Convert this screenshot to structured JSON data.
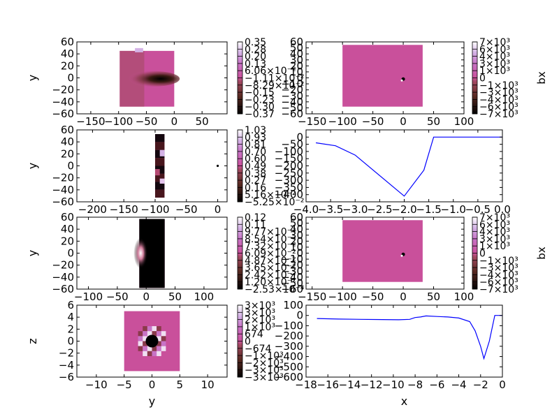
{
  "chart_data": [
    {
      "id": "p1",
      "type": "heatmap",
      "xlabel": "",
      "ylabel": "y",
      "xlim": [
        -175,
        95
      ],
      "ylim": [
        -60,
        60
      ],
      "xticks": [
        "−150",
        "−100",
        "−50",
        "0",
        "50"
      ],
      "xtick_values": [
        -150,
        -100,
        -50,
        0,
        50
      ],
      "yticks": [
        "−60",
        "−40",
        "−20",
        "0",
        "20",
        "40",
        "60"
      ],
      "ytick_values": [
        -60,
        -40,
        -20,
        0,
        20,
        40,
        60
      ],
      "data_extent": [
        -98,
        0,
        -48,
        45
      ],
      "colorbar": {
        "label": "",
        "ticks": [
          "0.35",
          "0.28",
          "0.20",
          "0.13",
          "6.06×10⁻²",
          "−1.11×10⁻²",
          "−8.29×10⁻²",
          "−0.15",
          "−0.23",
          "−0.30",
          "−0.37"
        ]
      }
    },
    {
      "id": "p2",
      "type": "heatmap",
      "xlabel": "",
      "ylabel": "",
      "xlim": [
        -160,
        100
      ],
      "ylim": [
        -60,
        60
      ],
      "xticks": [
        "−150",
        "−100",
        "−50",
        "0",
        "50",
        "100"
      ],
      "xtick_values": [
        -150,
        -100,
        -50,
        0,
        50,
        100
      ],
      "yticks": [
        "−60",
        "−50",
        "−40",
        "−30",
        "−20",
        "−10",
        "0",
        "10",
        "20",
        "30",
        "40",
        "50",
        "60"
      ],
      "ytick_values": [
        -60,
        -50,
        -40,
        -30,
        -20,
        -10,
        0,
        10,
        20,
        30,
        40,
        50,
        60
      ],
      "data_extent": [
        -100,
        32,
        -48,
        55
      ],
      "colorbar": {
        "label": "bx",
        "ticks": [
          "7×10³",
          "6×10³",
          "4×10³",
          "3×10³",
          "1×10³",
          "0",
          "−1×10³",
          "−3×10³",
          "−4×10³",
          "−6×10³",
          "−7×10³"
        ]
      }
    },
    {
      "id": "p3",
      "type": "heatmap",
      "xlabel": "",
      "ylabel": "y",
      "xlim": [
        -225,
        15
      ],
      "ylim": [
        -60,
        60
      ],
      "xticks": [
        "−200",
        "−150",
        "−100",
        "−50",
        "0"
      ],
      "xtick_values": [
        -200,
        -150,
        -100,
        -50,
        0
      ],
      "yticks": [
        "−60",
        "−40",
        "−20",
        "0",
        "20",
        "40",
        "60"
      ],
      "ytick_values": [
        -60,
        -40,
        -20,
        0,
        20,
        40,
        60
      ],
      "data_extent": [
        -100,
        -85,
        -53,
        53
      ],
      "colorbar": {
        "label": "",
        "ticks": [
          "1.03",
          "0.93",
          "0.81",
          "0.70",
          "0.60",
          "0.49",
          "0.38",
          "0.27",
          "0.16",
          "5.16×10⁻²",
          "−5.25×10⁻²"
        ]
      }
    },
    {
      "id": "p4",
      "type": "line",
      "xlabel": "",
      "ylabel": "",
      "xlim": [
        -4.0,
        0.0
      ],
      "ylim": [
        -450,
        50
      ],
      "xticks": [
        "−4.0",
        "−3.5",
        "−3.0",
        "−2.5",
        "−2.0",
        "−1.5",
        "−1.0",
        "−0.5",
        "0.0"
      ],
      "xtick_values": [
        -4.0,
        -3.5,
        -3.0,
        -2.5,
        -2.0,
        -1.5,
        -1.0,
        -0.5,
        0.0
      ],
      "yticks": [
        "0",
        "−50",
        "−100",
        "−150",
        "−200",
        "−250",
        "−300",
        "−350",
        "−400"
      ],
      "ytick_values": [
        0,
        -50,
        -100,
        -150,
        -200,
        -250,
        -300,
        -350,
        -400
      ],
      "x": [
        -3.8,
        -3.4,
        -3.0,
        -2.0,
        -1.6,
        -1.4,
        0.0
      ],
      "y": [
        -40,
        -60,
        -125,
        -410,
        -230,
        0,
        0
      ],
      "color": "#0000ff"
    },
    {
      "id": "p5",
      "type": "heatmap",
      "xlabel": "",
      "ylabel": "y",
      "xlim": [
        -120,
        140
      ],
      "ylim": [
        -60,
        60
      ],
      "xticks": [
        "−100",
        "−50",
        "0",
        "50",
        "100"
      ],
      "xtick_values": [
        -100,
        -50,
        0,
        50,
        100
      ],
      "yticks": [
        "−60",
        "−40",
        "−20",
        "0",
        "20",
        "40",
        "60"
      ],
      "ytick_values": [
        -60,
        -40,
        -20,
        0,
        20,
        40,
        60
      ],
      "data_extent": [
        -12,
        32,
        -58,
        57
      ],
      "colorbar": {
        "label": "",
        "ticks": [
          "0.12",
          "0.11",
          "9.77×10⁻²",
          "8.54×10⁻²",
          "7.32×10⁻²",
          "6.09×10⁻²",
          "4.87×10⁻²",
          "3.65×10⁻²",
          "2.42×10⁻²",
          "1.20×10⁻²",
          "−2.53×10⁻⁴"
        ]
      }
    },
    {
      "id": "p6",
      "type": "heatmap",
      "xlabel": "",
      "ylabel": "",
      "xlim": [
        -160,
        100
      ],
      "ylim": [
        -60,
        60
      ],
      "xticks": [
        "−150",
        "−100",
        "−50",
        "0",
        "50",
        "100"
      ],
      "xtick_values": [
        -150,
        -100,
        -50,
        0,
        50,
        100
      ],
      "yticks": [
        "−60",
        "−50",
        "−40",
        "−30",
        "−20",
        "−10",
        "0",
        "10",
        "20",
        "30",
        "40",
        "50",
        "60"
      ],
      "ytick_values": [
        -60,
        -50,
        -40,
        -30,
        -20,
        -10,
        0,
        10,
        20,
        30,
        40,
        50,
        60
      ],
      "data_extent": [
        -100,
        32,
        -48,
        55
      ],
      "colorbar": {
        "label": "bx",
        "ticks": [
          "7×10³",
          "6×10³",
          "4×10³",
          "3×10³",
          "1×10³",
          "0",
          "−1×10³",
          "−3×10³",
          "−4×10³",
          "−6×10³",
          "−7×10³"
        ]
      }
    },
    {
      "id": "p7",
      "type": "heatmap",
      "xlabel": "y",
      "ylabel": "z",
      "xlim": [
        -13.5,
        13.5
      ],
      "ylim": [
        -6,
        6
      ],
      "xticks": [
        "−10",
        "−5",
        "0",
        "5",
        "10"
      ],
      "xtick_values": [
        -10,
        -5,
        0,
        5,
        10
      ],
      "yticks": [
        "−6",
        "−4",
        "−2",
        "0",
        "2",
        "4",
        "6"
      ],
      "ytick_values": [
        -6,
        -4,
        -2,
        0,
        2,
        4,
        6
      ],
      "data_extent": [
        -5,
        5,
        -5,
        5
      ],
      "colorbar": {
        "label": "",
        "ticks": [
          "3×10³",
          "3×10³",
          "2×10³",
          "1×10³",
          "674",
          "0",
          "−674",
          "−1×10³",
          "−2×10³",
          "−3×10³",
          "−3×10³"
        ]
      }
    },
    {
      "id": "p8",
      "type": "line",
      "xlabel": "x",
      "ylabel": "",
      "xlim": [
        -18,
        0
      ],
      "ylim": [
        -600,
        100
      ],
      "xticks": [
        "−18",
        "−16",
        "−14",
        "−12",
        "−10",
        "−8",
        "−6",
        "−4",
        "−2",
        "0"
      ],
      "xtick_values": [
        -18,
        -16,
        -14,
        -12,
        -10,
        -8,
        -6,
        -4,
        -2,
        0
      ],
      "yticks": [
        "100",
        "0",
        "−100",
        "−200",
        "−300",
        "−400",
        "−500",
        "−600"
      ],
      "ytick_values": [
        100,
        0,
        -100,
        -200,
        -300,
        -400,
        -500,
        -600
      ],
      "x": [
        -17,
        -15,
        -13,
        -11,
        -9.5,
        -8.5,
        -8,
        -7.5,
        -7,
        -6,
        -5,
        -4,
        -3,
        -2.5,
        -2,
        -1.7,
        -1.2,
        -0.7,
        0
      ],
      "y": [
        -30,
        -35,
        -38,
        -40,
        -42,
        -38,
        -20,
        -15,
        -5,
        -10,
        -15,
        -25,
        -60,
        -150,
        -300,
        -420,
        -250,
        0,
        0
      ],
      "color": "#0000ff"
    }
  ]
}
